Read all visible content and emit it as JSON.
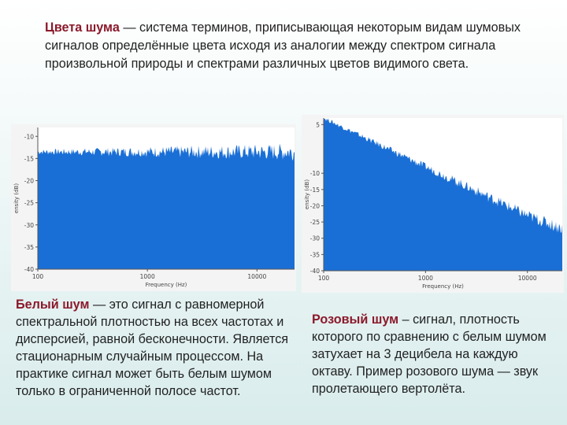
{
  "intro": {
    "term": "Цвета шума",
    "text": " — система терминов, приписывающая некоторым видам шумовых сигналов определённые цвета исходя из аналогии между спектром сигнала произвольной природы и спектрами различных цветов видимого света."
  },
  "white": {
    "term": "Белый шум",
    "text": " — это сигнал с равномерной спектральной плотностью на всех частотах и дисперсией, равной бесконечности. Является стационарным случайным процессом. На практике сигнал может быть белым шумом только в ограниченной полосе частот."
  },
  "pink": {
    "term": "Розовый шум",
    "text": " – сигнал, плотность которого по сравнению с белым шумом затухает на 3 децибела на каждую октаву. Пример розового шума — звук пролетающего вертолёта."
  },
  "colors": {
    "term": "#8b1a2b",
    "signal": "#1a6fd6",
    "axis": "#555555"
  },
  "chart_data": [
    {
      "type": "area",
      "title": "",
      "xlabel": "Frequency (Hz)",
      "ylabel": "ensity (dB)",
      "xscale": "log",
      "xlim": [
        100,
        22000
      ],
      "ylim": [
        -40,
        -8
      ],
      "xticks": [
        100,
        1000,
        10000
      ],
      "xtick_labels": [
        "100",
        "1000",
        "10000"
      ],
      "yticks": [
        -10,
        -15,
        -20,
        -25,
        -30,
        -35,
        -40
      ],
      "ytick_labels": [
        "-10",
        "-15",
        "-20",
        "-25",
        "-30",
        "-35",
        "-40"
      ],
      "x": [
        100,
        1000,
        10000,
        22000
      ],
      "y": [
        -13.5,
        -13.5,
        -13.5,
        -13.5
      ],
      "series": [
        {
          "values": [
            -13.5,
            -13.5,
            -13.5,
            -13.5
          ]
        }
      ]
    },
    {
      "type": "area",
      "title": "",
      "xlabel": "Frequency (Hz)",
      "ylabel": "ensity (dB)",
      "xscale": "log",
      "xlim": [
        100,
        22000
      ],
      "ylim": [
        -40,
        7
      ],
      "xticks": [
        100,
        1000,
        10000
      ],
      "xtick_labels": [
        "100",
        "1000",
        "10000"
      ],
      "yticks": [
        5,
        -10,
        -15,
        -20,
        -25,
        -30,
        -35,
        -40
      ],
      "ytick_labels": [
        "5",
        "-10",
        "-15",
        "-20",
        "-25",
        "-30",
        "-35",
        "-40"
      ],
      "x": [
        100,
        1000,
        10000,
        22000
      ],
      "y": [
        7,
        -8,
        -23,
        -27
      ],
      "series": [
        {
          "values": [
            7,
            -8,
            -23,
            -27
          ]
        }
      ]
    }
  ]
}
